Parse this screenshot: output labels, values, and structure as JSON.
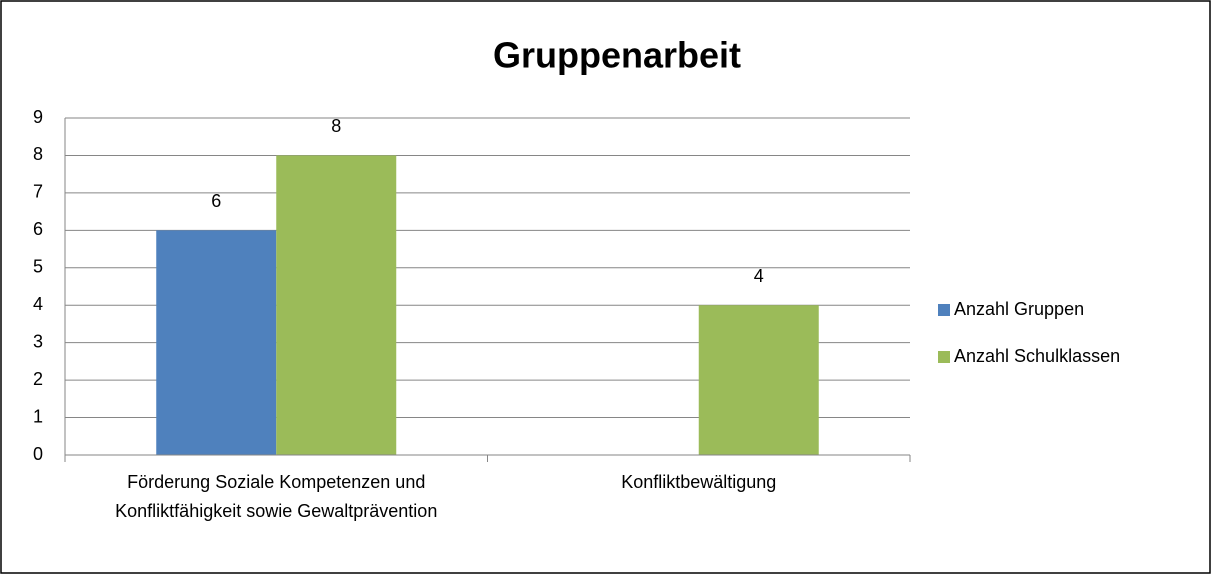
{
  "chart_data": {
    "type": "bar",
    "title": "Gruppenarbeit",
    "categories": [
      "Förderung Soziale Kompetenzen und Konfliktfähigkeit sowie Gewaltprävention",
      "Konfliktbewältigung"
    ],
    "series": [
      {
        "name": "Anzahl Gruppen",
        "color": "#4f81bd",
        "values": [
          6,
          null
        ]
      },
      {
        "name": "Anzahl Schulklassen",
        "color": "#9bbb59",
        "values": [
          8,
          4
        ]
      }
    ],
    "ylim": [
      0,
      9
    ],
    "yticks": [
      0,
      1,
      2,
      3,
      4,
      5,
      6,
      7,
      8,
      9
    ],
    "grid": true,
    "legend": "right"
  }
}
